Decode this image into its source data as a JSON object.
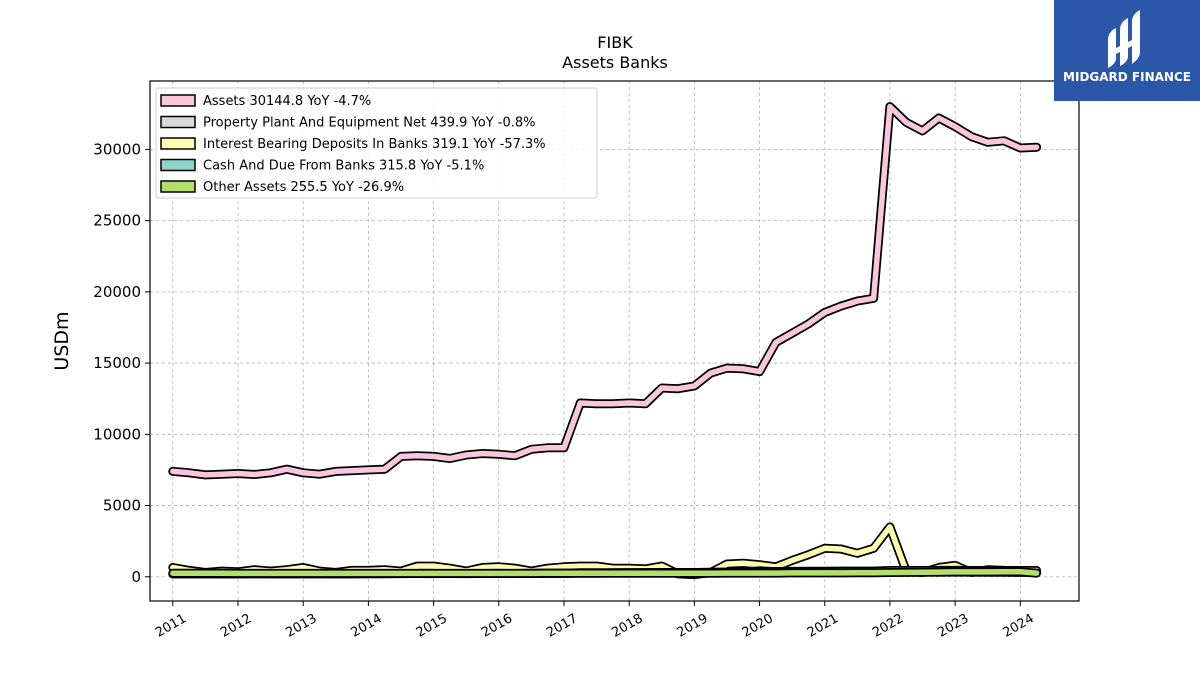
{
  "brand": {
    "logo_text": "MIDGARD FINANCE",
    "logo_bg": "#2a57a8"
  },
  "chart_data": {
    "type": "area",
    "title": "FIBK",
    "subtitle": "Assets Banks",
    "ylabel": "USDm",
    "xlabel": "",
    "ylim": [
      -1700,
      34800
    ],
    "yticks": [
      0,
      5000,
      10000,
      15000,
      20000,
      25000,
      30000
    ],
    "ytick_labels": [
      "0",
      "5000",
      "10000",
      "15000",
      "20000",
      "25000",
      "30000"
    ],
    "xlim": [
      2010.65,
      2024.9
    ],
    "xticks": [
      2011,
      2012,
      2013,
      2014,
      2015,
      2016,
      2017,
      2018,
      2019,
      2020,
      2021,
      2022,
      2023,
      2024
    ],
    "xtick_labels": [
      "2011",
      "2012",
      "2013",
      "2014",
      "2015",
      "2016",
      "2017",
      "2018",
      "2019",
      "2020",
      "2021",
      "2022",
      "2023",
      "2024"
    ],
    "grid": true,
    "legend_position": "top-left",
    "x": [
      2011.0,
      2011.25,
      2011.5,
      2011.75,
      2012.0,
      2012.25,
      2012.5,
      2012.75,
      2013.0,
      2013.25,
      2013.5,
      2013.75,
      2014.0,
      2014.25,
      2014.5,
      2014.75,
      2015.0,
      2015.25,
      2015.5,
      2015.75,
      2016.0,
      2016.25,
      2016.5,
      2016.75,
      2017.0,
      2017.25,
      2017.5,
      2017.75,
      2018.0,
      2018.25,
      2018.5,
      2018.75,
      2019.0,
      2019.25,
      2019.5,
      2019.75,
      2020.0,
      2020.25,
      2020.5,
      2020.75,
      2021.0,
      2021.25,
      2021.5,
      2021.75,
      2022.0,
      2022.25,
      2022.5,
      2022.75,
      2023.0,
      2023.25,
      2023.5,
      2023.75,
      2024.0,
      2024.25
    ],
    "series": [
      {
        "name": "Assets",
        "legend_label": "Assets  30144.8 YoY -4.7%",
        "color": "#f9c6dc",
        "values": [
          7400,
          7300,
          7150,
          7200,
          7250,
          7180,
          7300,
          7550,
          7300,
          7200,
          7400,
          7450,
          7500,
          7550,
          8450,
          8500,
          8450,
          8300,
          8550,
          8650,
          8600,
          8500,
          8950,
          9050,
          9050,
          12200,
          12150,
          12150,
          12200,
          12150,
          13250,
          13200,
          13400,
          14300,
          14650,
          14600,
          14400,
          16450,
          17100,
          17750,
          18550,
          19000,
          19350,
          19550,
          33000,
          31900,
          31300,
          32200,
          31600,
          30900,
          30500,
          30600,
          30100,
          30150
        ]
      },
      {
        "name": "Property Plant And Equipment Net",
        "legend_label": "Property Plant And Equipment Net  439.9 YoY -0.8%",
        "color": "#d9d9d9",
        "values": [
          200,
          200,
          200,
          200,
          200,
          200,
          200,
          200,
          200,
          200,
          200,
          200,
          210,
          210,
          230,
          230,
          230,
          230,
          230,
          230,
          230,
          230,
          240,
          240,
          240,
          280,
          280,
          280,
          290,
          290,
          300,
          300,
          300,
          320,
          330,
          340,
          340,
          370,
          380,
          390,
          390,
          400,
          400,
          400,
          440,
          440,
          440,
          445,
          445,
          440,
          440,
          440,
          440,
          440
        ]
      },
      {
        "name": "Interest Bearing Deposits In Banks",
        "legend_label": "Interest Bearing Deposits In Banks  319.1 YoY -57.3%",
        "color": "#fdfdb0",
        "values": [
          650,
          450,
          300,
          400,
          350,
          500,
          400,
          500,
          650,
          400,
          300,
          450,
          450,
          500,
          400,
          750,
          750,
          600,
          400,
          650,
          700,
          600,
          400,
          600,
          700,
          750,
          750,
          600,
          600,
          550,
          750,
          200,
          150,
          300,
          900,
          950,
          850,
          700,
          1150,
          1550,
          2000,
          1950,
          1650,
          2000,
          3500,
          400,
          300,
          650,
          800,
          300,
          500,
          450,
          350,
          320
        ]
      },
      {
        "name": "Cash And Due From Banks",
        "legend_label": "Cash And Due From Banks  315.8 YoY -5.1%",
        "color": "#8dd3c7",
        "values": [
          200,
          220,
          210,
          200,
          210,
          230,
          220,
          210,
          220,
          230,
          210,
          220,
          220,
          230,
          220,
          230,
          220,
          230,
          220,
          230,
          240,
          230,
          240,
          250,
          250,
          260,
          260,
          270,
          270,
          280,
          300,
          290,
          280,
          300,
          320,
          330,
          420,
          350,
          340,
          330,
          340,
          350,
          340,
          330,
          380,
          360,
          340,
          330,
          330,
          330,
          320,
          320,
          310,
          316
        ]
      },
      {
        "name": "Other Assets",
        "legend_label": "Other Assets  255.5 YoY -26.9%",
        "color": "#b3de69",
        "values": [
          250,
          250,
          250,
          250,
          240,
          240,
          240,
          240,
          240,
          240,
          240,
          240,
          240,
          240,
          240,
          240,
          240,
          240,
          240,
          240,
          240,
          240,
          240,
          250,
          250,
          250,
          250,
          250,
          250,
          250,
          250,
          250,
          250,
          250,
          260,
          260,
          260,
          260,
          270,
          270,
          270,
          270,
          280,
          280,
          300,
          310,
          320,
          330,
          340,
          340,
          340,
          350,
          350,
          255
        ]
      }
    ]
  }
}
